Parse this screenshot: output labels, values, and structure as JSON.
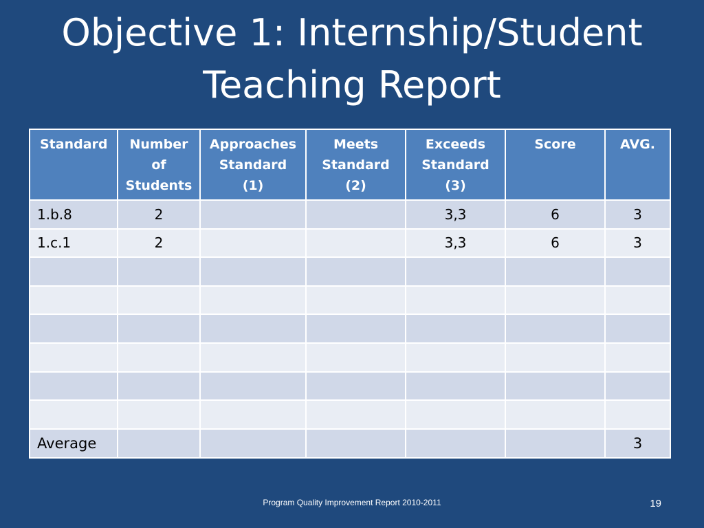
{
  "title": {
    "line1": "Objective 1: Internship/Student",
    "line2": "Teaching Report"
  },
  "table": {
    "headers": [
      [
        "Standard"
      ],
      [
        "Number",
        "of",
        "Students"
      ],
      [
        "Approaches",
        "Standard",
        "(1)"
      ],
      [
        "Meets",
        "Standard",
        "(2)"
      ],
      [
        "Exceeds",
        "Standard",
        "(3)"
      ],
      [
        "Score"
      ],
      [
        "AVG."
      ]
    ],
    "rows": [
      [
        "1.b.8",
        "2",
        "",
        "",
        "3,3",
        "6",
        "3"
      ],
      [
        "1.c.1",
        "2",
        "",
        "",
        "3,3",
        "6",
        "3"
      ],
      [
        "",
        "",
        "",
        "",
        "",
        "",
        ""
      ],
      [
        "",
        "",
        "",
        "",
        "",
        "",
        ""
      ],
      [
        "",
        "",
        "",
        "",
        "",
        "",
        ""
      ],
      [
        "",
        "",
        "",
        "",
        "",
        "",
        ""
      ],
      [
        "",
        "",
        "",
        "",
        "",
        "",
        ""
      ],
      [
        "",
        "",
        "",
        "",
        "",
        "",
        ""
      ],
      [
        "Average",
        "",
        "",
        "",
        "",
        "",
        "3"
      ]
    ]
  },
  "footer": {
    "text": "Program Quality Improvement Report 2010-2011",
    "page_number": "19"
  }
}
